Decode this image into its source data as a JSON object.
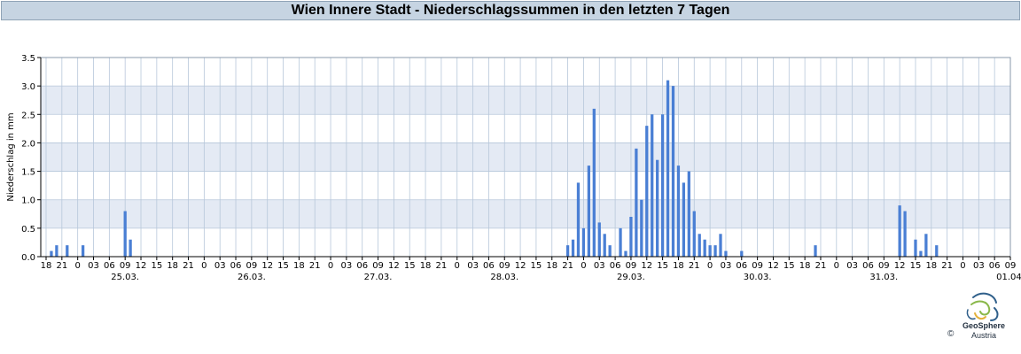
{
  "page": {
    "title": "Wien Innere Stadt - Niederschlagssummen in den letzten 7 Tagen",
    "logo_name": "GeoSphere",
    "logo_sub": "Austria",
    "copyright": "©"
  },
  "chart_data": {
    "type": "bar",
    "title": "Wien Innere Stadt - Niederschlagssummen in den letzten 7 Tagen",
    "ylabel": "Niederschlag in mm",
    "xlabel": "",
    "ylim": [
      0,
      3.5
    ],
    "yticks": [
      "0.0",
      "0.5",
      "1.0",
      "1.5",
      "2.0",
      "2.5",
      "3.0",
      "3.5"
    ],
    "x_start": "24.03. 18:00",
    "x_end": "01.04. 09:00",
    "interval_hours": 1,
    "hour_ticks": [
      "18",
      "21",
      "0",
      "03",
      "06",
      "09",
      "12",
      "15",
      "18",
      "21",
      "0",
      "03",
      "06",
      "09",
      "12",
      "15",
      "18",
      "21",
      "0",
      "03",
      "06",
      "09",
      "12",
      "15",
      "18",
      "21",
      "0",
      "03",
      "06",
      "09",
      "12",
      "15",
      "18",
      "21",
      "0",
      "03",
      "06",
      "09",
      "12",
      "15",
      "18",
      "21",
      "0",
      "03",
      "06",
      "09",
      "12",
      "15",
      "18",
      "21",
      "0",
      "03",
      "06",
      "09",
      "12",
      "15",
      "18",
      "21",
      "0",
      "03",
      "06",
      "09"
    ],
    "date_labels": [
      "25.03.",
      "26.03.",
      "27.03.",
      "28.03.",
      "29.03.",
      "30.03.",
      "31.03.",
      "01.04."
    ],
    "series": [
      {
        "color": "#4a7fd4",
        "points": [
          {
            "t": "24.03. 19:00",
            "v": 0.1
          },
          {
            "t": "24.03. 20:00",
            "v": 0.2
          },
          {
            "t": "24.03. 22:00",
            "v": 0.2
          },
          {
            "t": "25.03. 01:00",
            "v": 0.2
          },
          {
            "t": "25.03. 09:00",
            "v": 0.8
          },
          {
            "t": "25.03. 10:00",
            "v": 0.3
          },
          {
            "t": "28.03. 21:00",
            "v": 0.2
          },
          {
            "t": "28.03. 22:00",
            "v": 0.3
          },
          {
            "t": "28.03. 23:00",
            "v": 1.3
          },
          {
            "t": "29.03. 00:00",
            "v": 0.5
          },
          {
            "t": "29.03. 01:00",
            "v": 1.6
          },
          {
            "t": "29.03. 02:00",
            "v": 2.6
          },
          {
            "t": "29.03. 03:00",
            "v": 0.6
          },
          {
            "t": "29.03. 04:00",
            "v": 0.4
          },
          {
            "t": "29.03. 05:00",
            "v": 0.2
          },
          {
            "t": "29.03. 07:00",
            "v": 0.5
          },
          {
            "t": "29.03. 08:00",
            "v": 0.1
          },
          {
            "t": "29.03. 09:00",
            "v": 0.7
          },
          {
            "t": "29.03. 10:00",
            "v": 1.9
          },
          {
            "t": "29.03. 11:00",
            "v": 1.0
          },
          {
            "t": "29.03. 12:00",
            "v": 2.3
          },
          {
            "t": "29.03. 13:00",
            "v": 2.5
          },
          {
            "t": "29.03. 14:00",
            "v": 1.7
          },
          {
            "t": "29.03. 15:00",
            "v": 2.5
          },
          {
            "t": "29.03. 16:00",
            "v": 3.1
          },
          {
            "t": "29.03. 17:00",
            "v": 3.0
          },
          {
            "t": "29.03. 18:00",
            "v": 1.6
          },
          {
            "t": "29.03. 19:00",
            "v": 1.3
          },
          {
            "t": "29.03. 20:00",
            "v": 1.5
          },
          {
            "t": "29.03. 21:00",
            "v": 0.8
          },
          {
            "t": "29.03. 22:00",
            "v": 0.4
          },
          {
            "t": "29.03. 23:00",
            "v": 0.3
          },
          {
            "t": "30.03. 00:00",
            "v": 0.2
          },
          {
            "t": "30.03. 01:00",
            "v": 0.2
          },
          {
            "t": "30.03. 02:00",
            "v": 0.4
          },
          {
            "t": "30.03. 03:00",
            "v": 0.1
          },
          {
            "t": "30.03. 06:00",
            "v": 0.1
          },
          {
            "t": "30.03. 20:00",
            "v": 0.2
          },
          {
            "t": "31.03. 12:00",
            "v": 0.9
          },
          {
            "t": "31.03. 13:00",
            "v": 0.8
          },
          {
            "t": "31.03. 15:00",
            "v": 0.3
          },
          {
            "t": "31.03. 16:00",
            "v": 0.1
          },
          {
            "t": "31.03. 17:00",
            "v": 0.4
          },
          {
            "t": "31.03. 19:00",
            "v": 0.2
          }
        ]
      }
    ],
    "grid": true,
    "colors": {
      "bar": "#4a7fd4",
      "band": "#e4eaf4",
      "grid": "#b7c7da",
      "title_bg": "#c6d4e2"
    }
  }
}
